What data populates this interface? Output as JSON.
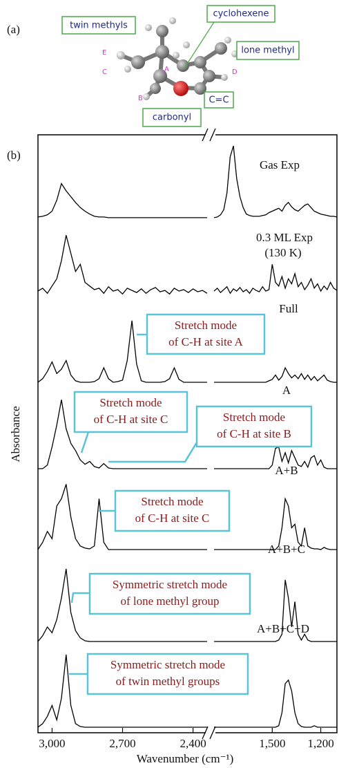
{
  "figure_a": {
    "panel_label": "(a)",
    "groups": [
      "twin methyls",
      "cyclohexene",
      "lone methyl",
      "carbonyl",
      "C=C"
    ],
    "atoms": [
      "A",
      "B",
      "C",
      "D",
      "E"
    ]
  },
  "chart_data": {
    "type": "line",
    "panel_label": "(b)",
    "xlabel": "Wavenumber (cm⁻¹)",
    "ylabel": "Absorbance",
    "xlim": [
      3060,
      1100
    ],
    "xbreak": [
      2340,
      1860
    ],
    "ylim": [
      0,
      1
    ],
    "xticks": [
      {
        "value": 3000,
        "label": "3,000"
      },
      {
        "value": 2700,
        "label": "2,700"
      },
      {
        "value": 2400,
        "label": "2,400"
      },
      {
        "value": 1500,
        "label": "1,500"
      },
      {
        "value": 1200,
        "label": "1,200"
      }
    ],
    "x": [
      3060,
      3040,
      3020,
      3000,
      2980,
      2960,
      2940,
      2920,
      2900,
      2880,
      2860,
      2840,
      2820,
      2800,
      2780,
      2760,
      2740,
      2720,
      2700,
      2680,
      2660,
      2640,
      2620,
      2600,
      2580,
      2560,
      2540,
      2520,
      2500,
      2480,
      2460,
      2440,
      2420,
      2400,
      2380,
      2360,
      2340,
      1860,
      1840,
      1820,
      1800,
      1780,
      1760,
      1740,
      1720,
      1700,
      1680,
      1660,
      1640,
      1620,
      1600,
      1580,
      1560,
      1540,
      1520,
      1500,
      1480,
      1460,
      1440,
      1420,
      1400,
      1380,
      1360,
      1340,
      1320,
      1300,
      1280,
      1260,
      1240,
      1220,
      1200,
      1180,
      1160,
      1140,
      1120,
      1100
    ],
    "series": [
      {
        "name": "Gas Exp",
        "color": "#000000",
        "values": [
          0.02,
          0.03,
          0.05,
          0.1,
          0.25,
          0.48,
          0.38,
          0.3,
          0.22,
          0.15,
          0.1,
          0.06,
          0.03,
          0.02,
          0.02,
          0.01,
          0.01,
          0.01,
          0.01,
          0.01,
          0.01,
          0.01,
          0.01,
          0.01,
          0.01,
          0.01,
          0.01,
          0.01,
          0.01,
          0.01,
          0.01,
          0.01,
          0.01,
          0.01,
          0.01,
          0.01,
          0.01,
          0.01,
          0.02,
          0.05,
          0.12,
          0.35,
          0.85,
          1.0,
          0.55,
          0.3,
          0.15,
          0.06,
          0.04,
          0.03,
          0.03,
          0.03,
          0.04,
          0.05,
          0.08,
          0.1,
          0.12,
          0.14,
          0.1,
          0.18,
          0.22,
          0.16,
          0.12,
          0.1,
          0.14,
          0.18,
          0.2,
          0.15,
          0.1,
          0.08,
          0.06,
          0.05,
          0.04,
          0.03,
          0.03,
          0.02
        ]
      },
      {
        "name": "0.3 ML Exp",
        "subtitle": "(130 K)",
        "color": "#000000",
        "values": [
          0.18,
          0.22,
          0.15,
          0.25,
          0.35,
          0.6,
          0.95,
          0.7,
          0.45,
          0.55,
          0.3,
          0.25,
          0.2,
          0.22,
          0.15,
          0.24,
          0.18,
          0.2,
          0.14,
          0.22,
          0.19,
          0.16,
          0.21,
          0.15,
          0.2,
          0.23,
          0.17,
          0.19,
          0.14,
          0.22,
          0.18,
          0.2,
          0.16,
          0.21,
          0.17,
          0.19,
          0.15,
          0.18,
          0.22,
          0.16,
          0.2,
          0.24,
          0.15,
          0.21,
          0.18,
          0.23,
          0.17,
          0.2,
          0.15,
          0.22,
          0.19,
          0.17,
          0.24,
          0.18,
          0.2,
          0.55,
          0.3,
          0.25,
          0.38,
          0.22,
          0.35,
          0.28,
          0.42,
          0.24,
          0.3,
          0.2,
          0.26,
          0.35,
          0.22,
          0.28,
          0.18,
          0.25,
          0.2,
          0.3,
          0.22,
          0.19
        ]
      },
      {
        "name": "Full",
        "color": "#000000",
        "annotations": [
          [
            "Stretch mode",
            "of C-H at site A"
          ]
        ],
        "values": [
          0,
          0.05,
          0.15,
          0.28,
          0.12,
          0.18,
          0.3,
          0.1,
          0.02,
          0,
          0,
          0,
          0.01,
          0.05,
          0.2,
          0.05,
          0,
          0.01,
          0.03,
          0.3,
          0.85,
          0.25,
          0.02,
          0,
          0,
          0,
          0,
          0.01,
          0.05,
          0.2,
          0.04,
          0,
          0,
          0,
          0,
          0,
          0,
          0,
          0,
          0,
          0,
          0,
          0,
          0,
          0,
          0,
          0,
          0,
          0,
          0,
          0,
          0,
          0,
          0,
          0.02,
          0.04,
          0.1,
          0.03,
          0.08,
          0.2,
          0.12,
          0.06,
          0.1,
          0.05,
          0.12,
          0.04,
          0.1,
          0.03,
          0.08,
          0.02,
          0.06,
          0.1,
          0.03,
          0.01,
          0,
          0
        ]
      },
      {
        "name": "A",
        "color": "#000000",
        "annotations": [
          [
            "Stretch mode",
            "of C-H at site C"
          ],
          [
            "Stretch mode",
            "of C-H at site B"
          ]
        ],
        "values": [
          0,
          0,
          0.05,
          0.3,
          0.6,
          0.95,
          0.55,
          0.35,
          0.25,
          0.12,
          0.06,
          0.1,
          0.03,
          0.01,
          0.07,
          0.01,
          0,
          0,
          0,
          0,
          0,
          0,
          0,
          0,
          0,
          0,
          0,
          0,
          0,
          0,
          0,
          0,
          0,
          0,
          0,
          0,
          0,
          0,
          0,
          0,
          0,
          0,
          0,
          0,
          0,
          0,
          0,
          0,
          0,
          0,
          0,
          0,
          0,
          0,
          0,
          0.05,
          0.28,
          0.3,
          0.1,
          0.22,
          0.08,
          0.25,
          0.15,
          0.05,
          0.03,
          0.1,
          0.02,
          0.15,
          0.18,
          0.05,
          0.12,
          0.02,
          0,
          0,
          0,
          0
        ]
      },
      {
        "name": "A+B",
        "color": "#000000",
        "annotations": [
          [
            "Stretch mode",
            "of C-H at site C"
          ]
        ],
        "values": [
          0,
          0.1,
          0.25,
          0.15,
          0.6,
          0.7,
          0.9,
          0.45,
          0.15,
          0.05,
          0.02,
          0.01,
          0.05,
          0.7,
          0.1,
          0,
          0,
          0,
          0,
          0,
          0,
          0,
          0,
          0,
          0,
          0,
          0,
          0,
          0,
          0,
          0,
          0,
          0,
          0,
          0,
          0,
          0,
          0,
          0,
          0,
          0,
          0,
          0,
          0,
          0,
          0,
          0,
          0,
          0,
          0,
          0,
          0,
          0,
          0,
          0,
          0,
          0,
          0.05,
          0.3,
          0.7,
          0.6,
          0.3,
          0.35,
          0.1,
          0.05,
          0.3,
          0.05,
          0.02,
          0.01,
          0.01,
          0,
          0.03,
          0.01,
          0,
          0,
          0
        ]
      },
      {
        "name": "A+B+C",
        "color": "#000000",
        "annotations": [
          [
            "Symmetric stretch mode",
            "of lone methyl group"
          ]
        ],
        "values": [
          0,
          0.08,
          0.2,
          0.12,
          0.3,
          0.6,
          1.0,
          0.4,
          0.15,
          0.05,
          0.01,
          0,
          0,
          0,
          0,
          0,
          0,
          0,
          0,
          0,
          0,
          0,
          0,
          0,
          0,
          0,
          0,
          0,
          0,
          0,
          0,
          0,
          0,
          0,
          0,
          0,
          0,
          0,
          0,
          0,
          0,
          0,
          0,
          0,
          0,
          0,
          0,
          0,
          0,
          0,
          0,
          0,
          0,
          0,
          0,
          0,
          0,
          0.02,
          0.1,
          0.85,
          0.6,
          0.2,
          0.55,
          0.1,
          0.02,
          0.1,
          0.02,
          0,
          0,
          0,
          0,
          0,
          0,
          0,
          0,
          0
        ]
      },
      {
        "name": "A+B+C+D",
        "color": "#000000",
        "annotations": [
          [
            "Symmetric stretch mode",
            "of twin methyl groups"
          ]
        ],
        "values": [
          0,
          0.05,
          0.15,
          0.3,
          0.1,
          0.4,
          1.0,
          0.3,
          0.05,
          0.01,
          0,
          0,
          0,
          0,
          0,
          0,
          0,
          0,
          0,
          0,
          0,
          0,
          0,
          0,
          0,
          0,
          0,
          0,
          0,
          0,
          0,
          0,
          0,
          0,
          0,
          0,
          0,
          0,
          0,
          0,
          0,
          0,
          0,
          0,
          0,
          0,
          0,
          0,
          0,
          0,
          0,
          0,
          0,
          0,
          0,
          0,
          0,
          0.02,
          0.2,
          0.6,
          0.65,
          0.5,
          0.2,
          0.05,
          0.01,
          0,
          0,
          0,
          0.02,
          0,
          0,
          0,
          0,
          0,
          0,
          0
        ]
      }
    ]
  }
}
